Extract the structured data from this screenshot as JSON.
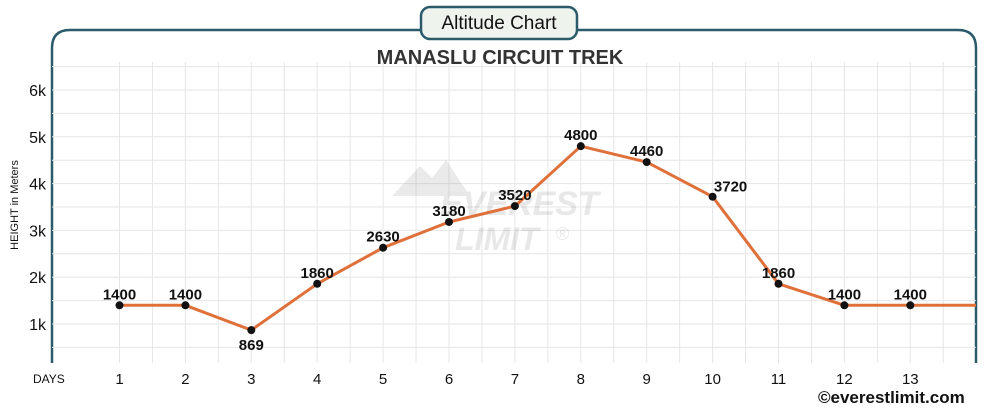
{
  "badge": {
    "label": "Altitude Chart"
  },
  "watermark": {
    "line1": "EVEREST",
    "line2": "LIMIT",
    "mark": "®"
  },
  "footer": {
    "credit": "©everestlimit.com"
  },
  "colors": {
    "frame": "#2b5b6b",
    "line": "#e0703a",
    "point": "#111111",
    "grid": "#e6e6e6",
    "badge_fill": "#eef3ee"
  },
  "chart_data": {
    "type": "line",
    "title": "MANASLU CIRCUIT TREK",
    "xlabel": "DAYS",
    "ylabel": "HEIGHT in Meters",
    "x": [
      1,
      2,
      3,
      4,
      5,
      6,
      7,
      8,
      9,
      10,
      11,
      12,
      13
    ],
    "values": [
      1400,
      1400,
      869,
      1860,
      2630,
      3180,
      3520,
      4800,
      4460,
      3720,
      1860,
      1400,
      1400
    ],
    "data_labels": [
      "1400",
      "1400",
      "869",
      "1860",
      "2630",
      "3180",
      "3520",
      "4800",
      "4460",
      "3720",
      "1860",
      "1400",
      "1400"
    ],
    "y_ticks": [
      1000,
      2000,
      3000,
      4000,
      5000,
      6000
    ],
    "y_tick_labels": [
      "1k",
      "2k",
      "3k",
      "4k",
      "5k",
      "6k"
    ],
    "x_tick_labels": [
      "1",
      "2",
      "3",
      "4",
      "5",
      "6",
      "7",
      "8",
      "9",
      "10",
      "11",
      "12",
      "13"
    ],
    "ylim": [
      0,
      6500
    ],
    "line_continues_right": true,
    "grid": true,
    "legend": "none"
  }
}
